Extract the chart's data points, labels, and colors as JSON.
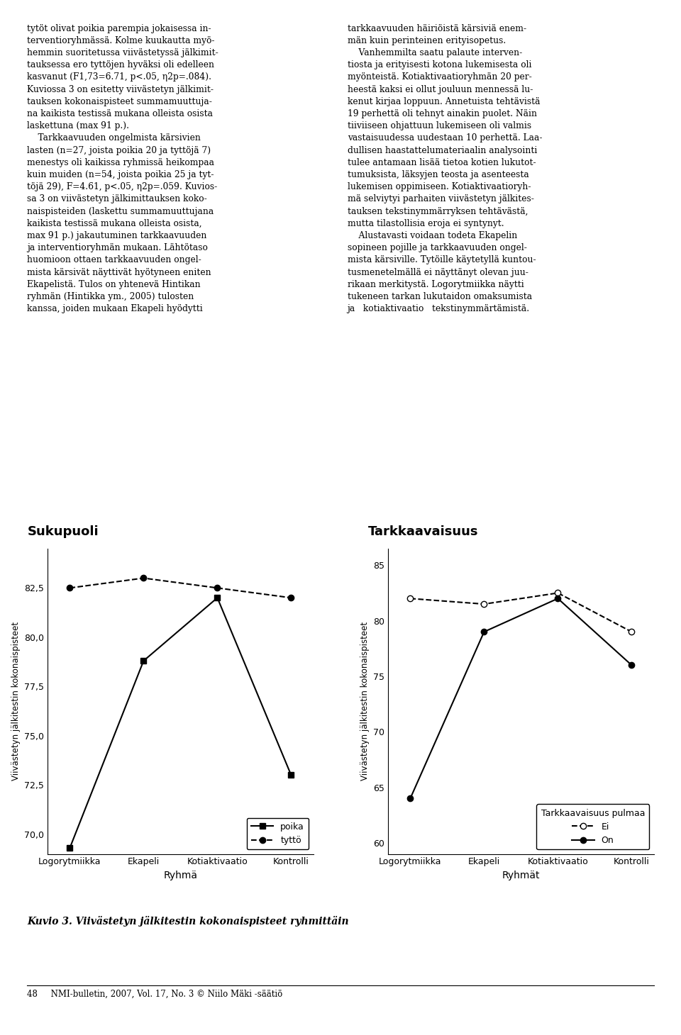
{
  "left_title": "Sukupuoli",
  "right_title": "Tarkkaavaisuus",
  "categories": [
    "Logorytmiikka",
    "Ekapeli",
    "Kotiaktivaatio",
    "Kontrolli"
  ],
  "left_xlabel": "Ryhmä",
  "right_xlabel": "Ryhmät",
  "ylabel": "Viivästetyn jälkitestin kokonaispisteet",
  "left_series": {
    "poika": [
      69.3,
      78.8,
      82.0,
      73.0
    ],
    "tyttö": [
      82.5,
      83.0,
      82.5,
      82.0
    ]
  },
  "right_series": {
    "Ei": [
      82.0,
      81.5,
      82.5,
      79.0
    ],
    "On": [
      64.0,
      79.0,
      82.0,
      76.0
    ]
  },
  "left_ylim": [
    69.0,
    84.5
  ],
  "left_yticks": [
    70.0,
    72.5,
    75.0,
    77.5,
    80.0,
    82.5
  ],
  "right_ylim": [
    59.0,
    86.5
  ],
  "right_yticks": [
    60,
    65,
    70,
    75,
    80,
    85
  ],
  "caption": "Kuvio 3. Viivästetyn jälkitestin kokonaispisteet ryhmittäin",
  "footer": "48     NMI-bulletin, 2007, Vol. 17, No. 3 © Niilo Mäki -säätiö",
  "legend_right_title": "Tarkkaavaisuus pulmaa",
  "background_color": "#ffffff",
  "line_color": "#000000",
  "text_left": "tytöt olivat poikia parempia jokaisessa in-\nterventioryhmässä. Kolme kuukautta myö-\nhemmin suoritetussa viivästetyssä jälkimit-\ntauksessa ero tyttöjen hyväksi oli edelleen\nkasvanut (F1,73=6.71, p<.05, η2p=.084).\nKuviossa 3 on esitetty viivästetyn jälkimit-\ntauksen kokonaispisteet summamuuttuja-\nna kaikista testissä mukana olleista osista\nlaskettuna (max 91 p.).\n    Tarkkaavuuden ongelmista kärsivien\nlasten (n=27, joista poikia 20 ja tyttöjä 7)\nmenestys oli kaikissa ryhmissä heikompaa\nkuin muiden (n=54, joista poikia 25 ja tyt-\ntöjä 29), F=4.61, p<.05, η2p=.059. Kuvios-\nsa 3 on viivästetyn jälkimittauksen koko-\nnaispisteiden (laskettu summamuuttujana\nkaikista testissä mukana olleista osista,\nmax 91 p.) jakautuminen tarkkaavuuden\nja interventioryhmän mukaan. Lähtötaso\nhuomioon ottaen tarkkaavuuden ongel-\nmista kärsivät näyttivät hyötyneen eniten\nEkapelistä. Tulos on yhtenevä Hintikan\nryhmän (Hintikka ym., 2005) tulosten\nkanssa, joiden mukaan Ekapeli hyödytti",
  "text_right": "tarkkaavuuden häiriöistä kärsiviä enem-\nmän kuin perinteinen erityisopetus.\n    Vanhemmilta saatu palaute interven-\ntiosta ja erityisesti kotona lukemisesta oli\nmyönteistä. Kotiaktivaatioryhmän 20 per-\nheestä kaksi ei ollut jouluun mennessä lu-\nkenut kirjaa loppuun. Annetuista tehtävistä\n19 perhettä oli tehnyt ainakin puolet. Näin\ntiiviiseen ohjattuun lukemiseen oli valmis\nvastaisuudessa uudestaan 10 perhettä. Laa-\ndullisen haastattelumateriaalin analysointi\ntulee antamaan lisää tietoa kotien lukutot-\ntumuksista, läksyjen teosta ja asenteesta\nlukemisen oppimiseen. Kotiaktivaatioryh-\nmä selviytyi parhaiten viivästetyn jälkites-\ntauksen tekstinymmärryksen tehtävästä,\nmutta tilastollisia eroja ei syntynyt.\n    Alustavasti voidaan todeta Ekapelin\nsopineen pojille ja tarkkaavuuden ongel-\nmista kärsiville. Tytöille käytetyllä kuntou-\ntusmenetelmällä ei näyttänyt olevan juu-\nrikaan merkitystä. Logorytmiikka näytti\ntukeneen tarkan lukutaidon omaksumista\nja   kotiaktivaatio   tekstinymmärtämistä."
}
